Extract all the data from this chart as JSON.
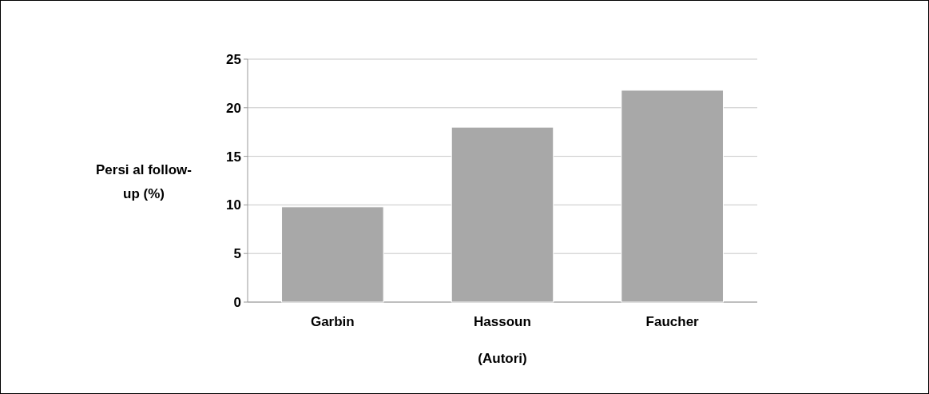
{
  "chart_data": {
    "type": "bar",
    "xlabel": "(Autori)",
    "ylabel": "Persi al follow-up (%)",
    "categories": [
      "Garbin",
      "Hassoun",
      "Faucher"
    ],
    "values": [
      9.8,
      18,
      21.8
    ],
    "color": "#a8a8a8",
    "ylim": [
      0,
      25
    ],
    "yticks": [
      0,
      5,
      10,
      15,
      20,
      25
    ],
    "grid": "y"
  }
}
